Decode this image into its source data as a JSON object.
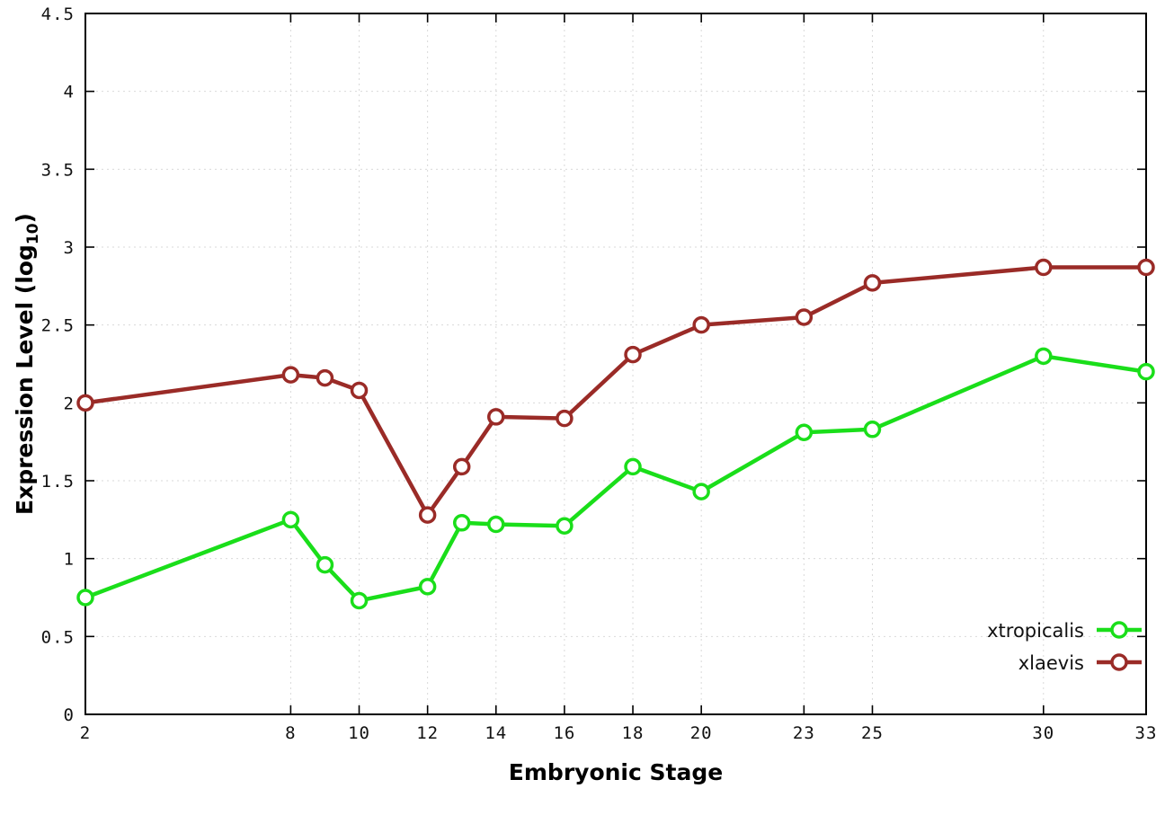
{
  "chart_data": {
    "type": "line",
    "title": "",
    "xlabel": "Embryonic Stage",
    "ylabel": {
      "text": "Expression Level (log",
      "sub": "10",
      "after": ")"
    },
    "x": [
      2,
      8,
      9,
      10,
      12,
      13,
      14,
      16,
      18,
      20,
      23,
      25,
      30,
      33
    ],
    "series": [
      {
        "name": "xtropicalis",
        "color": "#1ade1a",
        "values": [
          0.75,
          1.25,
          0.96,
          0.73,
          0.82,
          1.23,
          1.22,
          1.21,
          1.59,
          1.43,
          1.81,
          1.83,
          2.3,
          2.2
        ]
      },
      {
        "name": "xlaevis",
        "color": "#9a2b27",
        "values": [
          2.0,
          2.18,
          2.16,
          2.08,
          1.28,
          1.59,
          1.91,
          1.9,
          2.31,
          2.5,
          2.55,
          2.77,
          2.87,
          2.87
        ]
      }
    ],
    "xlim": [
      2,
      33
    ],
    "ylim": [
      0,
      4.5
    ],
    "xticks": [
      {
        "value": 2,
        "label": "2"
      },
      {
        "value": 8,
        "label": "8"
      },
      {
        "value": 10,
        "label": "10"
      },
      {
        "value": 12,
        "label": "12"
      },
      {
        "value": 14,
        "label": "14"
      },
      {
        "value": 16,
        "label": "16"
      },
      {
        "value": 18,
        "label": "18"
      },
      {
        "value": 20,
        "label": "20"
      },
      {
        "value": 23,
        "label": "23"
      },
      {
        "value": 25,
        "label": "25"
      },
      {
        "value": 30,
        "label": "30"
      },
      {
        "value": 33,
        "label": "33"
      }
    ],
    "yticks": [
      {
        "value": 0,
        "label": "0"
      },
      {
        "value": 0.5,
        "label": "0.5"
      },
      {
        "value": 1,
        "label": "1"
      },
      {
        "value": 1.5,
        "label": "1.5"
      },
      {
        "value": 2,
        "label": "2"
      },
      {
        "value": 2.5,
        "label": "2.5"
      },
      {
        "value": 3,
        "label": "3"
      },
      {
        "value": 3.5,
        "label": "3.5"
      },
      {
        "value": 4,
        "label": "4"
      },
      {
        "value": 4.5,
        "label": "4.5"
      }
    ],
    "grid": true,
    "legend": {
      "position": "bottom-right",
      "entries": [
        "xtropicalis",
        "xlaevis"
      ]
    }
  }
}
